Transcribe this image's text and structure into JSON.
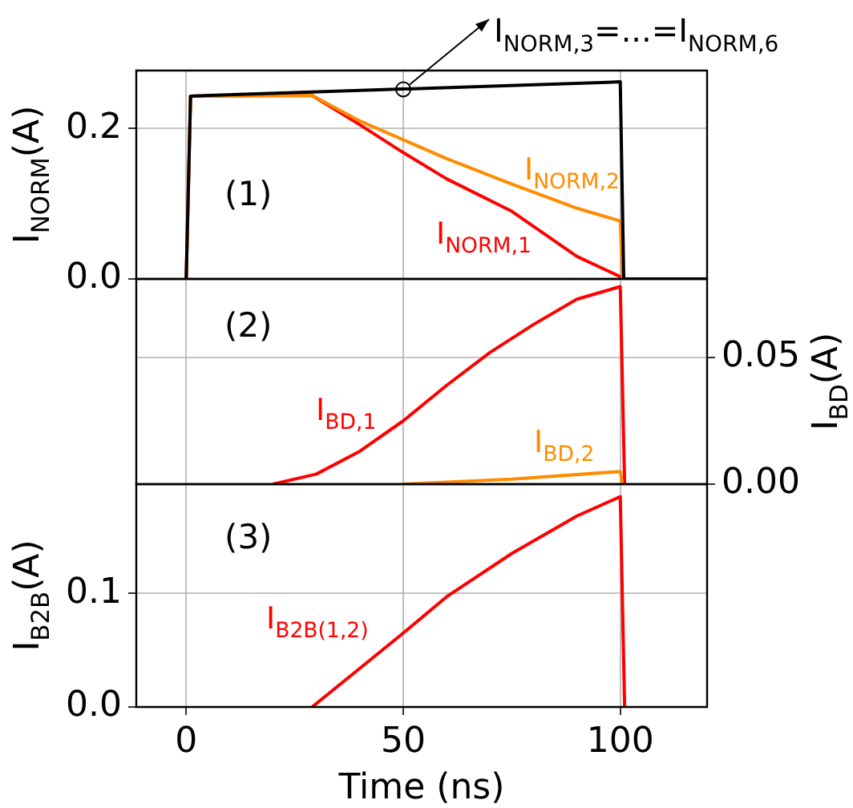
{
  "chart_data": [
    {
      "type": "line",
      "ylabel": "I$_{NORM}$(A)",
      "xlim": [
        -11.5,
        120
      ],
      "xticks": [
        0,
        50,
        100
      ],
      "ylim": [
        0,
        0.277
      ],
      "yticks": [
        {
          "value": 0,
          "label": "0.0"
        },
        0.2
      ],
      "grid": true,
      "legend": false,
      "tick_labels": "y",
      "marker": "none",
      "line_style": "solid",
      "annotations": [
        "(1)",
        {
          "text": "I$_{NORM,3}$=...=I$_{NORM,6}$",
          "x": 50,
          "y": 0.252
        }
      ],
      "series": [
        {
          "name": "I$_{NORM,1}$",
          "color": "#ff0000",
          "x": [
            0,
            1,
            29,
            40,
            50,
            60,
            75,
            90,
            100,
            100.5
          ],
          "values": [
            0,
            0.243,
            0.244,
            0.205,
            0.168,
            0.133,
            0.09,
            0.03,
            0.003,
            0
          ]
        },
        {
          "name": "I$_{NORM,2}$",
          "color": "#ff8c00",
          "x": [
            0,
            1,
            29,
            40,
            50,
            60,
            75,
            90,
            100,
            100.5
          ],
          "values": [
            0,
            0.243,
            0.244,
            0.21,
            0.185,
            0.16,
            0.126,
            0.094,
            0.077,
            0
          ]
        },
        {
          "color": "#000000",
          "x": [
            0,
            1,
            100,
            100.8,
            120
          ],
          "values": [
            0,
            0.243,
            0.262,
            0,
            0
          ]
        }
      ]
    },
    {
      "type": "line",
      "y2label": "I$_{BD}$(A)",
      "xlim": [
        -11.5,
        120
      ],
      "xticks": [
        0,
        50,
        100
      ],
      "y2lim": [
        0,
        0.081
      ],
      "y2ticks": [
        {
          "value": 0,
          "label": "0.00"
        },
        0.05
      ],
      "grid": true,
      "legend": false,
      "tick_labels": "y",
      "marker": "none",
      "line_style": "solid",
      "annotations": [
        "(2)"
      ],
      "series": [
        {
          "name": "I$_{BD,1}$",
          "color": "#ff0000",
          "axis": "y2",
          "x": [
            20,
            30,
            40,
            50,
            60,
            70,
            80,
            90,
            100,
            101
          ],
          "values": [
            0,
            0.004,
            0.013,
            0.025,
            0.039,
            0.052,
            0.063,
            0.073,
            0.078,
            0
          ]
        },
        {
          "name": "I$_{BD,2}$",
          "color": "#ff8c00",
          "axis": "y2",
          "x": [
            50,
            75,
            100,
            100.5
          ],
          "values": [
            0,
            0.002,
            0.005,
            0
          ]
        }
      ]
    },
    {
      "type": "line",
      "xlabel": "Time (ns)",
      "ylabel": "I$_{B2B}$(A)",
      "xlim": [
        -11.5,
        120
      ],
      "xticks": [
        0,
        50,
        100
      ],
      "ylim": [
        0,
        0.196
      ],
      "yticks": [
        {
          "value": 0,
          "label": "0.0"
        },
        0.1
      ],
      "grid": true,
      "legend": false,
      "marker": "none",
      "line_style": "solid",
      "annotations": [
        "(3)"
      ],
      "series": [
        {
          "name": "I$_{B2B(1,2)}$",
          "color": "#ff0000",
          "x": [
            29,
            40,
            50,
            60,
            75,
            90,
            100,
            101
          ],
          "values": [
            0,
            0.034,
            0.065,
            0.097,
            0.135,
            0.168,
            0.185,
            0
          ]
        }
      ]
    }
  ]
}
